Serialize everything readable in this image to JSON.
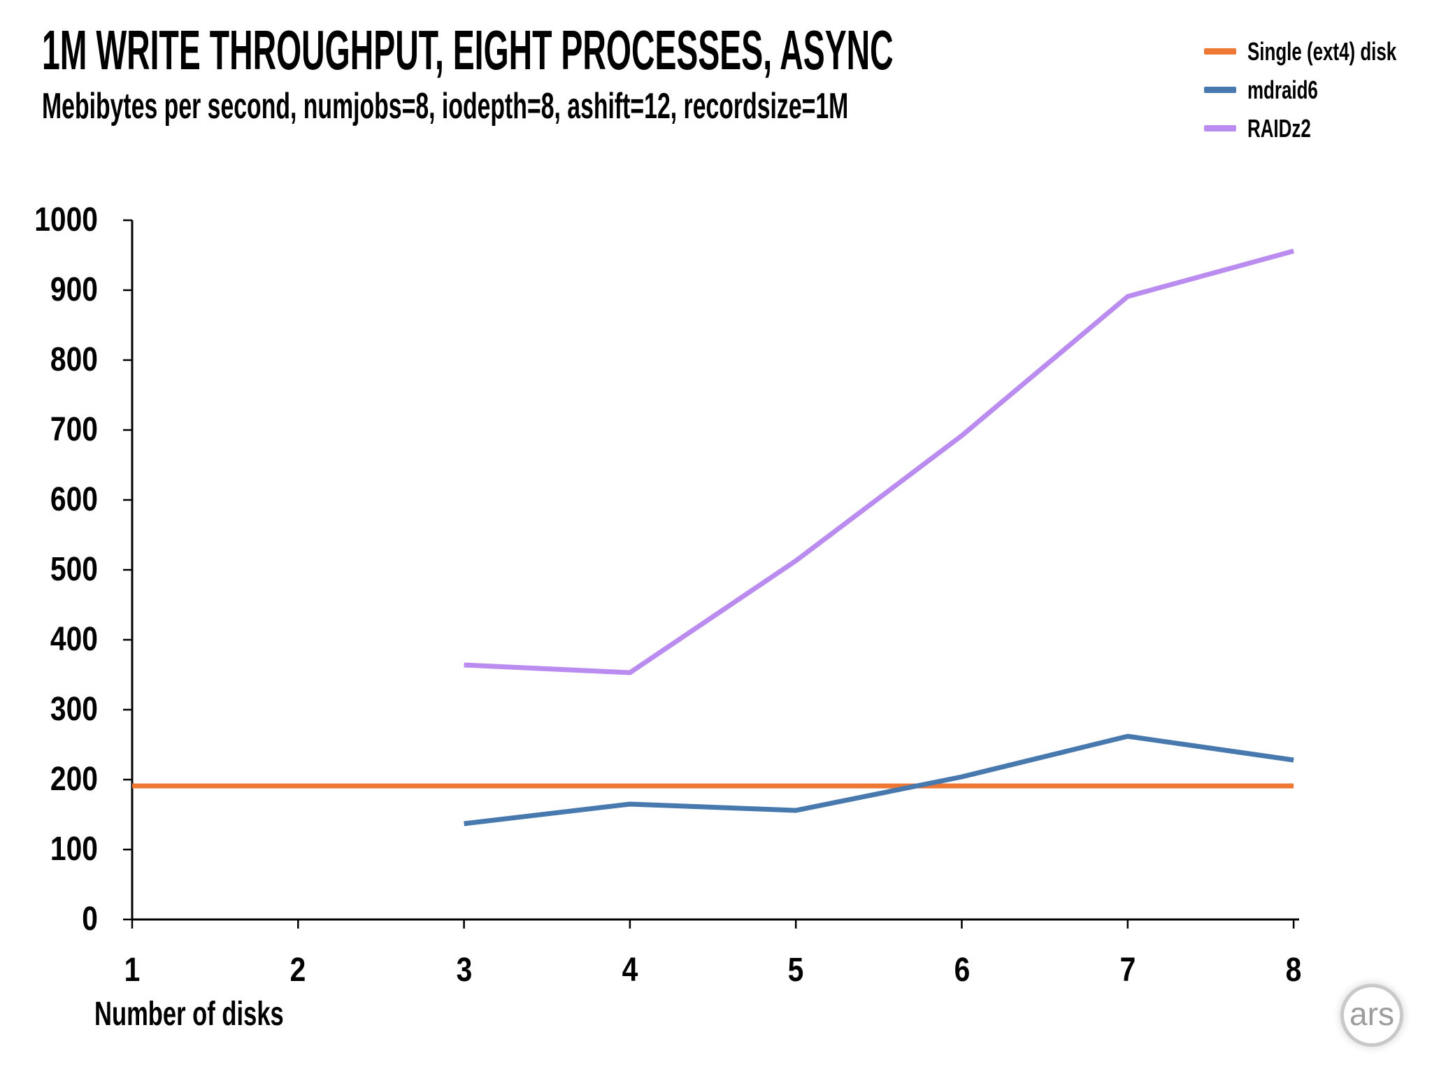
{
  "header": {
    "title": "1M WRITE THROUGHPUT, EIGHT PROCESSES, ASYNC",
    "subtitle": "Mebibytes per second, numjobs=8, iodepth=8, ashift=12, recordsize=1M"
  },
  "footer": {
    "logo_text": "ars"
  },
  "chart_data": {
    "type": "line",
    "title": "1M WRITE THROUGHPUT, EIGHT PROCESSES, ASYNC",
    "subtitle": "Mebibytes per second, numjobs=8, iodepth=8, ashift=12, recordsize=1M",
    "xlabel": "Number of disks",
    "ylabel": "",
    "xlim": [
      1,
      8
    ],
    "ylim": [
      0,
      1000
    ],
    "x_ticks": [
      1,
      2,
      3,
      4,
      5,
      6,
      7,
      8
    ],
    "y_ticks": [
      0,
      100,
      200,
      300,
      400,
      500,
      600,
      700,
      800,
      900,
      1000
    ],
    "grid": false,
    "legend_position": "top-right",
    "series": [
      {
        "name": "Single (ext4) disk",
        "color": "#ED7733",
        "x": [
          1,
          2,
          3,
          4,
          5,
          6,
          7,
          8
        ],
        "y": [
          191,
          191,
          191,
          191,
          191,
          191,
          191,
          191
        ]
      },
      {
        "name": "mdraid6",
        "color": "#4779AE",
        "x": [
          3,
          4,
          5,
          6,
          7,
          8
        ],
        "y": [
          137,
          165,
          156,
          204,
          262,
          228
        ]
      },
      {
        "name": "RAIDz2",
        "color": "#BB8CF0",
        "x": [
          3,
          4,
          5,
          6,
          7,
          8
        ],
        "y": [
          364,
          353,
          513,
          692,
          891,
          956
        ]
      }
    ]
  }
}
